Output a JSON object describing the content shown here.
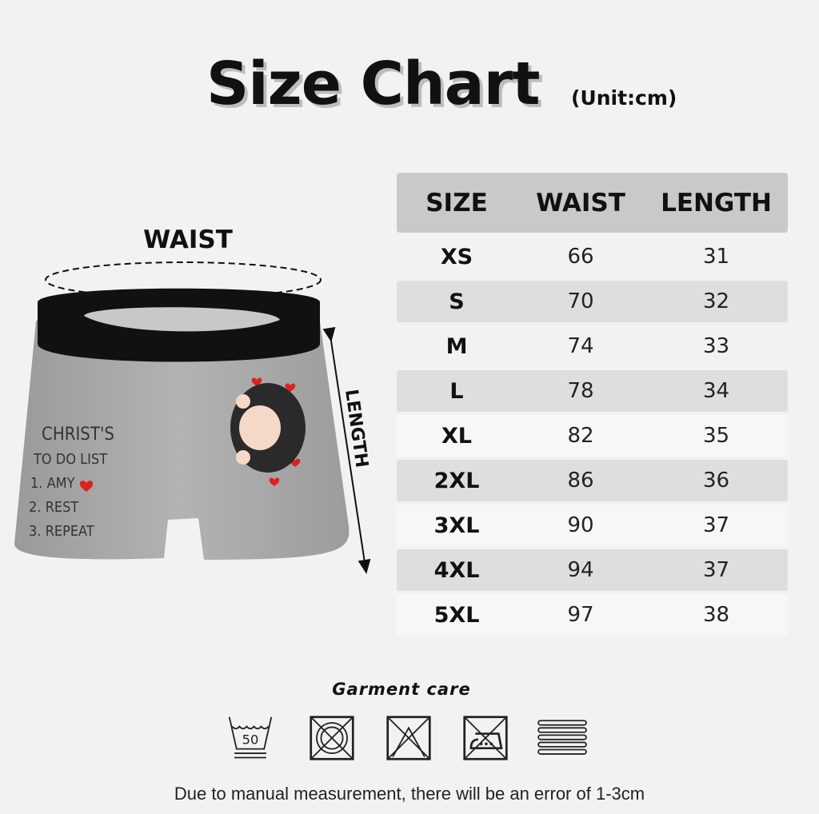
{
  "header": {
    "title": "Size Chart",
    "unit": "(Unit:cm)"
  },
  "illustration": {
    "waist_label": "WAIST",
    "length_label": "LENGTH",
    "print_text": [
      "CHRIST'S",
      "TO DO LIST",
      "1. AMY",
      "2. REST",
      "3. REPEAT"
    ],
    "heart_color": "#e02020",
    "waistband_color": "#111111",
    "fabric_color": "#a9a9a9"
  },
  "table": {
    "headers": [
      "SIZE",
      "WAIST",
      "LENGTH"
    ],
    "rows": [
      [
        "XS",
        "66",
        "31"
      ],
      [
        "S",
        "70",
        "32"
      ],
      [
        "M",
        "74",
        "33"
      ],
      [
        "L",
        "78",
        "34"
      ],
      [
        "XL",
        "82",
        "35"
      ],
      [
        "2XL",
        "86",
        "36"
      ],
      [
        "3XL",
        "90",
        "37"
      ],
      [
        "4XL",
        "94",
        "37"
      ],
      [
        "5XL",
        "97",
        "38"
      ]
    ]
  },
  "care": {
    "title": "Garment care",
    "icons": [
      "wash-50-icon",
      "do-not-tumble-dry-icon",
      "do-not-bleach-icon",
      "do-not-iron-icon",
      "dry-flat-icon"
    ],
    "wash_temp": "50"
  },
  "footer": {
    "note": "Due to manual measurement, there will be an error of 1-3cm"
  }
}
